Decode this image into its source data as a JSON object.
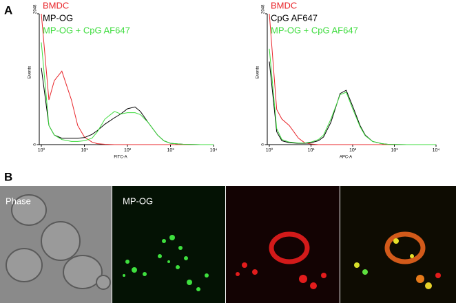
{
  "panel_labels": [
    "A",
    "B"
  ],
  "image_labels": [
    "Phase",
    "MP-OG"
  ],
  "chart_data": [
    {
      "type": "line",
      "xscale": "log",
      "xlabel": "FITC-A",
      "ylabel": "Events",
      "xlim": [
        1,
        10000
      ],
      "ylim": [
        0,
        2048
      ],
      "xticks": [
        {
          "value": 1,
          "label": "10⁰"
        },
        {
          "value": 10,
          "label": "10¹"
        },
        {
          "value": 100,
          "label": "10²"
        },
        {
          "value": 1000,
          "label": "10³"
        },
        {
          "value": 10000,
          "label": "10⁴"
        }
      ],
      "yticks": [
        0,
        2048
      ],
      "x": [
        1,
        1.5,
        2,
        3,
        5,
        7,
        10,
        15,
        20,
        30,
        50,
        70,
        100,
        150,
        200,
        300,
        500,
        700,
        1000,
        2000,
        5000,
        10000
      ],
      "series": [
        {
          "name": "BMDC",
          "color": "#e8252a",
          "values": [
            2048,
            700,
            1000,
            1150,
            700,
            300,
            120,
            40,
            15,
            5,
            0,
            0,
            0,
            0,
            0,
            0,
            0,
            0,
            0,
            0,
            0,
            0
          ]
        },
        {
          "name": "MP-OG",
          "color": "#000000",
          "values": [
            1200,
            300,
            150,
            100,
            100,
            100,
            110,
            160,
            220,
            320,
            420,
            480,
            560,
            590,
            520,
            350,
            150,
            60,
            20,
            5,
            0,
            0
          ]
        },
        {
          "name": "MP-OG + CpG AF647",
          "color": "#3ddc3d",
          "values": [
            1600,
            300,
            150,
            80,
            50,
            50,
            60,
            100,
            200,
            400,
            520,
            480,
            500,
            500,
            470,
            350,
            150,
            60,
            20,
            5,
            0,
            0
          ]
        }
      ]
    },
    {
      "type": "line",
      "xscale": "log",
      "xlabel": "APC-A",
      "ylabel": "Events",
      "xlim": [
        1,
        10000
      ],
      "ylim": [
        0,
        2048
      ],
      "xticks": [
        {
          "value": 1,
          "label": "10⁰"
        },
        {
          "value": 10,
          "label": "10¹"
        },
        {
          "value": 100,
          "label": "10²"
        },
        {
          "value": 1000,
          "label": "10³"
        },
        {
          "value": 10000,
          "label": "10⁴"
        }
      ],
      "yticks": [
        0,
        2048
      ],
      "x": [
        1,
        1.5,
        2,
        3,
        5,
        7,
        10,
        15,
        20,
        30,
        50,
        70,
        100,
        150,
        200,
        300,
        500,
        700,
        1000,
        2000,
        5000,
        10000
      ],
      "series": [
        {
          "name": "BMDC",
          "color": "#e8252a",
          "values": [
            2048,
            550,
            400,
            300,
            100,
            30,
            10,
            0,
            0,
            0,
            0,
            0,
            0,
            0,
            0,
            0,
            0,
            0,
            0,
            0,
            0,
            0
          ]
        },
        {
          "name": "CpG AF647",
          "color": "#000000",
          "values": [
            1300,
            200,
            60,
            30,
            20,
            20,
            30,
            60,
            120,
            350,
            800,
            850,
            600,
            300,
            150,
            50,
            15,
            5,
            2,
            0,
            0,
            0
          ]
        },
        {
          "name": "MP-OG + CpG AF647",
          "color": "#3ddc3d",
          "values": [
            1500,
            250,
            80,
            40,
            25,
            25,
            40,
            80,
            150,
            400,
            780,
            820,
            560,
            280,
            140,
            50,
            15,
            5,
            2,
            0,
            0,
            0
          ]
        }
      ]
    }
  ]
}
